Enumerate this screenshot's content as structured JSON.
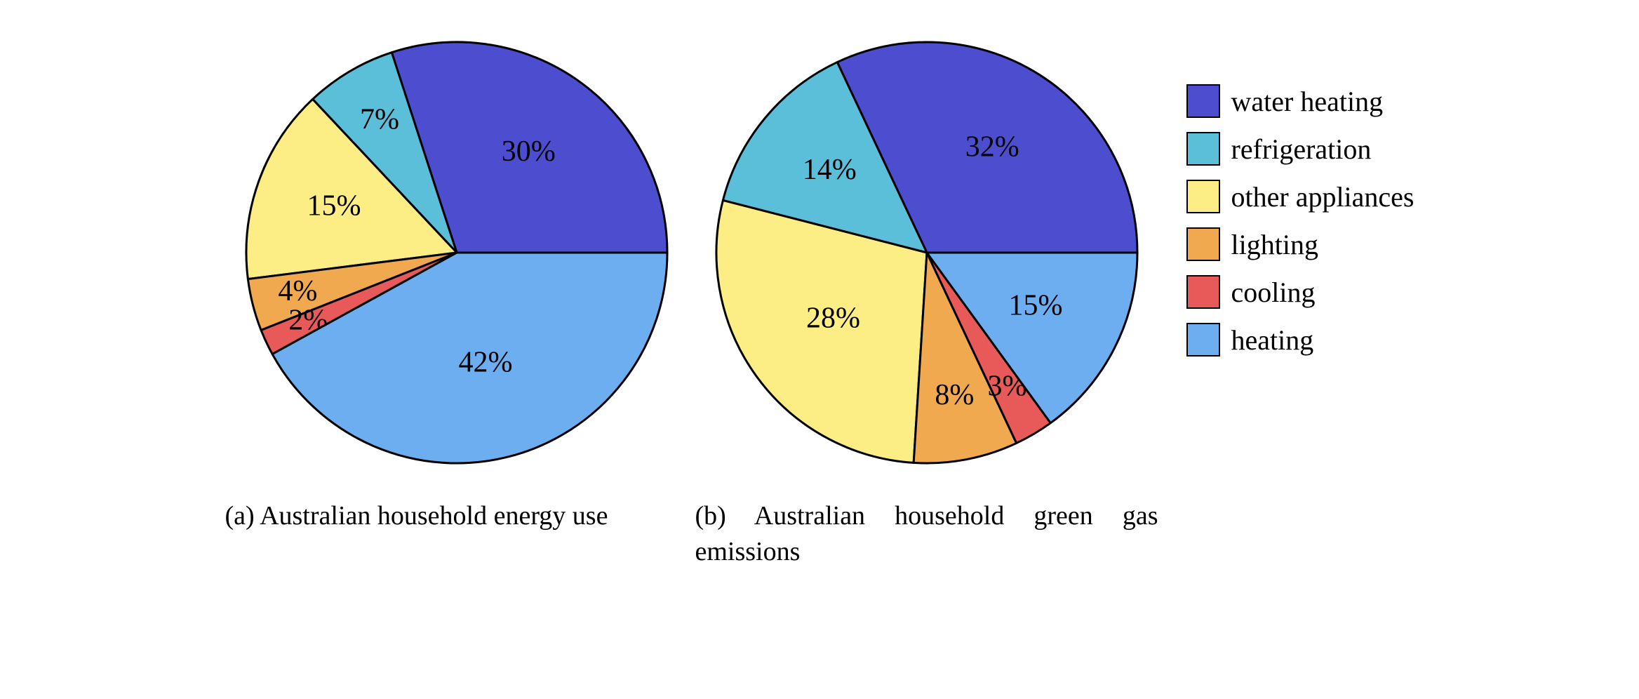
{
  "colors": {
    "water_heating": "#4d4dcf",
    "refrigeration": "#5cbfd9",
    "other_appliances": "#fcee85",
    "lighting": "#f0a94f",
    "cooling": "#e85a5a",
    "heating": "#6daef0",
    "stroke": "#000000",
    "background": "#ffffff"
  },
  "stroke_width": 3,
  "pie_radius": 300,
  "label_fontsize": 42,
  "legend": {
    "items": [
      {
        "key": "water_heating",
        "label": "water heating"
      },
      {
        "key": "refrigeration",
        "label": "refrigeration"
      },
      {
        "key": "other_appliances",
        "label": "other appliances"
      },
      {
        "key": "lighting",
        "label": "lighting"
      },
      {
        "key": "cooling",
        "label": "cooling"
      },
      {
        "key": "heating",
        "label": "heating"
      }
    ]
  },
  "chart_a": {
    "type": "pie",
    "caption": "(a) Australian household energy use",
    "start_angle": 0,
    "direction": "ccw",
    "slices": [
      {
        "key": "water_heating",
        "value": 30,
        "label": "30%",
        "label_r": 0.58
      },
      {
        "key": "refrigeration",
        "value": 7,
        "label": "7%",
        "label_r": 0.72
      },
      {
        "key": "other_appliances",
        "value": 15,
        "label": "15%",
        "label_r": 0.62
      },
      {
        "key": "lighting",
        "value": 4,
        "label": "4%",
        "label_r": 0.78
      },
      {
        "key": "cooling",
        "value": 2,
        "label": "2%",
        "label_r": 0.78
      },
      {
        "key": "heating",
        "value": 42,
        "label": "42%",
        "label_r": 0.55
      }
    ]
  },
  "chart_b": {
    "type": "pie",
    "caption": "(b) Australian household green gas emissions",
    "start_angle": 0,
    "direction": "ccw",
    "slices": [
      {
        "key": "water_heating",
        "value": 32,
        "label": "32%",
        "label_r": 0.58
      },
      {
        "key": "refrigeration",
        "value": 14,
        "label": "14%",
        "label_r": 0.6
      },
      {
        "key": "other_appliances",
        "value": 28,
        "label": "28%",
        "label_r": 0.55
      },
      {
        "key": "lighting",
        "value": 8,
        "label": "8%",
        "label_r": 0.7
      },
      {
        "key": "cooling",
        "value": 3,
        "label": "3%",
        "label_r": 0.75
      },
      {
        "key": "heating",
        "value": 15,
        "label": "15%",
        "label_r": 0.58
      }
    ]
  }
}
